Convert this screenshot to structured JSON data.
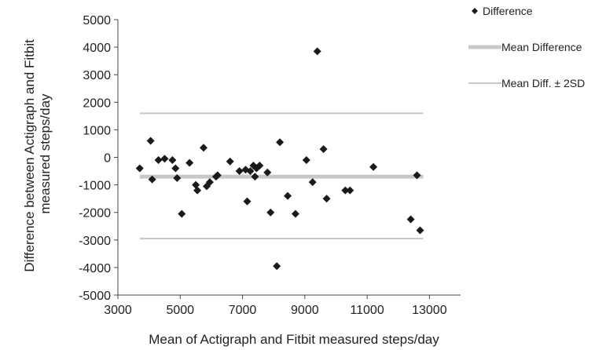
{
  "chart_data": {
    "type": "scatter",
    "xlabel": "Mean of Actigraph and Fitbit measured steps/day",
    "ylabel_lines": [
      "Difference between Actigraph and Fitbit",
      "measured steps/day"
    ],
    "xlim": [
      3000,
      14000
    ],
    "ylim": [
      -5000,
      5000
    ],
    "x_ticks": [
      3000,
      5000,
      7000,
      9000,
      11000,
      13000
    ],
    "y_ticks": [
      5000,
      4000,
      3000,
      2000,
      1000,
      0,
      -1000,
      -2000,
      -3000,
      -4000,
      -5000
    ],
    "grid": false,
    "legend_position": "top-right",
    "series": [
      {
        "name": "Difference",
        "marker": "diamond",
        "color": "#1a1a1a",
        "points": [
          [
            3700,
            -400
          ],
          [
            4050,
            600
          ],
          [
            4100,
            -800
          ],
          [
            4300,
            -100
          ],
          [
            4500,
            -50
          ],
          [
            4750,
            -100
          ],
          [
            4850,
            -400
          ],
          [
            4900,
            -750
          ],
          [
            5050,
            -2050
          ],
          [
            5300,
            -200
          ],
          [
            5500,
            -1000
          ],
          [
            5550,
            -1200
          ],
          [
            5750,
            350
          ],
          [
            5850,
            -1050
          ],
          [
            5950,
            -900
          ],
          [
            6150,
            -700
          ],
          [
            6200,
            -650
          ],
          [
            6600,
            -150
          ],
          [
            6900,
            -500
          ],
          [
            7100,
            -450
          ],
          [
            7150,
            -1600
          ],
          [
            7250,
            -500
          ],
          [
            7350,
            -300
          ],
          [
            7400,
            -700
          ],
          [
            7450,
            -400
          ],
          [
            7550,
            -300
          ],
          [
            7800,
            -550
          ],
          [
            7900,
            -2000
          ],
          [
            8100,
            -3950
          ],
          [
            8200,
            550
          ],
          [
            8450,
            -1400
          ],
          [
            8700,
            -2050
          ],
          [
            9050,
            -100
          ],
          [
            9250,
            -900
          ],
          [
            9400,
            3850
          ],
          [
            9600,
            300
          ],
          [
            9700,
            -1500
          ],
          [
            10300,
            -1200
          ],
          [
            10450,
            -1200
          ],
          [
            11200,
            -350
          ],
          [
            12400,
            -2250
          ],
          [
            12600,
            -650
          ],
          [
            12700,
            -2650
          ]
        ]
      },
      {
        "name": "Mean Difference",
        "style": "thick-line",
        "color": "#c8c8c8",
        "y": -700,
        "x_range": [
          3700,
          12800
        ]
      },
      {
        "name": "Mean Diff. ± 2SD",
        "style": "thin-line",
        "color": "#c8c8c8",
        "y_values": [
          1600,
          -2950
        ],
        "x_range": [
          3700,
          12800
        ]
      }
    ]
  }
}
